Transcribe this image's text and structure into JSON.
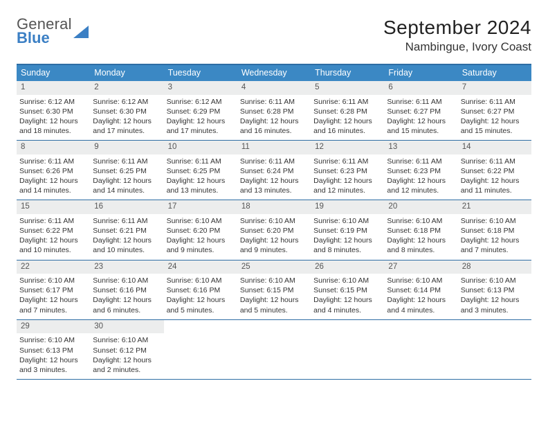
{
  "logo": {
    "line1": "General",
    "line2": "Blue"
  },
  "header": {
    "title": "September 2024",
    "location": "Nambingue, Ivory Coast"
  },
  "style": {
    "header_bg": "#3b88c4",
    "border_color": "#2e6da4",
    "day_bar_bg": "#eceded",
    "logo_accent": "#3b7fc4",
    "title_fontsize": 28,
    "location_fontsize": 17,
    "weekday_fontsize": 12.5,
    "cell_fontsize": 10.5
  },
  "weekdays": [
    "Sunday",
    "Monday",
    "Tuesday",
    "Wednesday",
    "Thursday",
    "Friday",
    "Saturday"
  ],
  "days": [
    {
      "n": 1,
      "sunrise": "6:12 AM",
      "sunset": "6:30 PM",
      "daylight": "12 hours and 18 minutes."
    },
    {
      "n": 2,
      "sunrise": "6:12 AM",
      "sunset": "6:30 PM",
      "daylight": "12 hours and 17 minutes."
    },
    {
      "n": 3,
      "sunrise": "6:12 AM",
      "sunset": "6:29 PM",
      "daylight": "12 hours and 17 minutes."
    },
    {
      "n": 4,
      "sunrise": "6:11 AM",
      "sunset": "6:28 PM",
      "daylight": "12 hours and 16 minutes."
    },
    {
      "n": 5,
      "sunrise": "6:11 AM",
      "sunset": "6:28 PM",
      "daylight": "12 hours and 16 minutes."
    },
    {
      "n": 6,
      "sunrise": "6:11 AM",
      "sunset": "6:27 PM",
      "daylight": "12 hours and 15 minutes."
    },
    {
      "n": 7,
      "sunrise": "6:11 AM",
      "sunset": "6:27 PM",
      "daylight": "12 hours and 15 minutes."
    },
    {
      "n": 8,
      "sunrise": "6:11 AM",
      "sunset": "6:26 PM",
      "daylight": "12 hours and 14 minutes."
    },
    {
      "n": 9,
      "sunrise": "6:11 AM",
      "sunset": "6:25 PM",
      "daylight": "12 hours and 14 minutes."
    },
    {
      "n": 10,
      "sunrise": "6:11 AM",
      "sunset": "6:25 PM",
      "daylight": "12 hours and 13 minutes."
    },
    {
      "n": 11,
      "sunrise": "6:11 AM",
      "sunset": "6:24 PM",
      "daylight": "12 hours and 13 minutes."
    },
    {
      "n": 12,
      "sunrise": "6:11 AM",
      "sunset": "6:23 PM",
      "daylight": "12 hours and 12 minutes."
    },
    {
      "n": 13,
      "sunrise": "6:11 AM",
      "sunset": "6:23 PM",
      "daylight": "12 hours and 12 minutes."
    },
    {
      "n": 14,
      "sunrise": "6:11 AM",
      "sunset": "6:22 PM",
      "daylight": "12 hours and 11 minutes."
    },
    {
      "n": 15,
      "sunrise": "6:11 AM",
      "sunset": "6:22 PM",
      "daylight": "12 hours and 10 minutes."
    },
    {
      "n": 16,
      "sunrise": "6:11 AM",
      "sunset": "6:21 PM",
      "daylight": "12 hours and 10 minutes."
    },
    {
      "n": 17,
      "sunrise": "6:10 AM",
      "sunset": "6:20 PM",
      "daylight": "12 hours and 9 minutes."
    },
    {
      "n": 18,
      "sunrise": "6:10 AM",
      "sunset": "6:20 PM",
      "daylight": "12 hours and 9 minutes."
    },
    {
      "n": 19,
      "sunrise": "6:10 AM",
      "sunset": "6:19 PM",
      "daylight": "12 hours and 8 minutes."
    },
    {
      "n": 20,
      "sunrise": "6:10 AM",
      "sunset": "6:18 PM",
      "daylight": "12 hours and 8 minutes."
    },
    {
      "n": 21,
      "sunrise": "6:10 AM",
      "sunset": "6:18 PM",
      "daylight": "12 hours and 7 minutes."
    },
    {
      "n": 22,
      "sunrise": "6:10 AM",
      "sunset": "6:17 PM",
      "daylight": "12 hours and 7 minutes."
    },
    {
      "n": 23,
      "sunrise": "6:10 AM",
      "sunset": "6:16 PM",
      "daylight": "12 hours and 6 minutes."
    },
    {
      "n": 24,
      "sunrise": "6:10 AM",
      "sunset": "6:16 PM",
      "daylight": "12 hours and 5 minutes."
    },
    {
      "n": 25,
      "sunrise": "6:10 AM",
      "sunset": "6:15 PM",
      "daylight": "12 hours and 5 minutes."
    },
    {
      "n": 26,
      "sunrise": "6:10 AM",
      "sunset": "6:15 PM",
      "daylight": "12 hours and 4 minutes."
    },
    {
      "n": 27,
      "sunrise": "6:10 AM",
      "sunset": "6:14 PM",
      "daylight": "12 hours and 4 minutes."
    },
    {
      "n": 28,
      "sunrise": "6:10 AM",
      "sunset": "6:13 PM",
      "daylight": "12 hours and 3 minutes."
    },
    {
      "n": 29,
      "sunrise": "6:10 AM",
      "sunset": "6:13 PM",
      "daylight": "12 hours and 3 minutes."
    },
    {
      "n": 30,
      "sunrise": "6:10 AM",
      "sunset": "6:12 PM",
      "daylight": "12 hours and 2 minutes."
    }
  ],
  "first_weekday_offset": 0,
  "labels": {
    "sunrise": "Sunrise:",
    "sunset": "Sunset:",
    "daylight": "Daylight:"
  }
}
